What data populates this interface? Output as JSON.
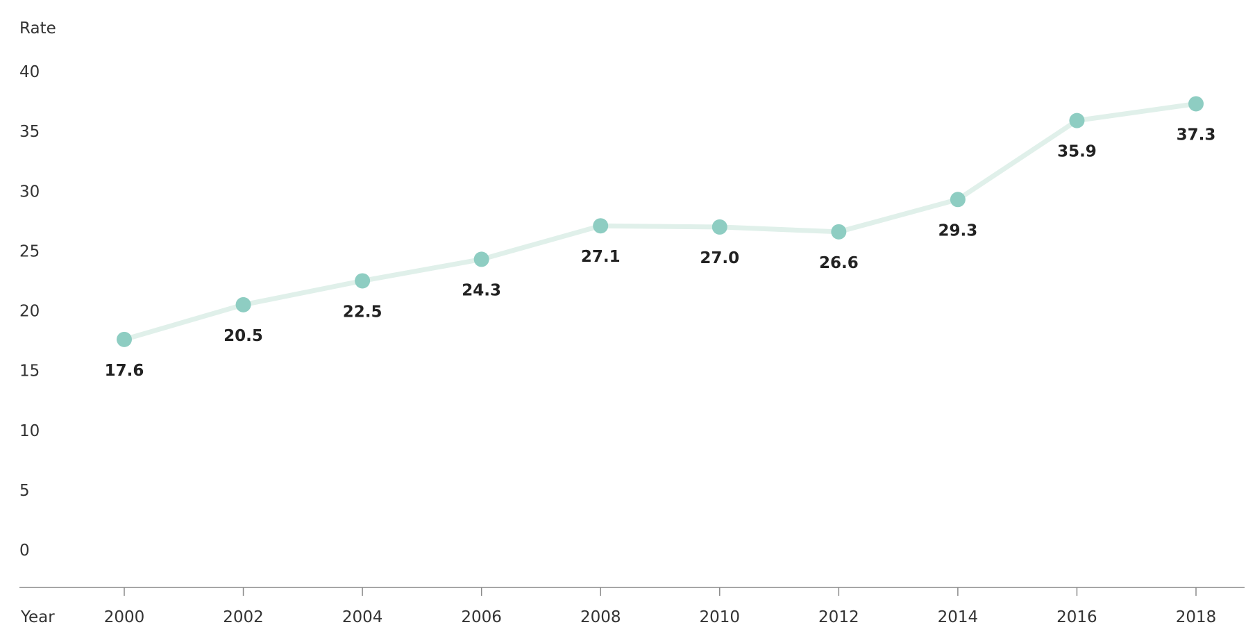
{
  "chart_data": {
    "type": "line",
    "ylabel": "Rate",
    "xlabel": "Year",
    "x": [
      2000,
      2002,
      2004,
      2006,
      2008,
      2010,
      2012,
      2014,
      2016,
      2018
    ],
    "series": [
      {
        "values": [
          17.6,
          20.5,
          22.5,
          24.3,
          27.1,
          27.0,
          26.6,
          29.3,
          35.9,
          37.3
        ],
        "labels": [
          "17.6",
          "20.5",
          "22.5",
          "24.3",
          "27.1",
          "27.0",
          "26.6",
          "29.3",
          "35.9",
          "37.3"
        ]
      }
    ],
    "xticks": [
      "2000",
      "2002",
      "2004",
      "2006",
      "2008",
      "2010",
      "2012",
      "2014",
      "2016",
      "2018"
    ],
    "yticks": [
      "0",
      "5",
      "10",
      "15",
      "20",
      "25",
      "30",
      "35",
      "40"
    ],
    "ylim": [
      0,
      40
    ],
    "grid": false,
    "colors": {
      "line": "#e0f0ea",
      "marker": "#8ecdc2",
      "axis": "#8a8a8a"
    }
  }
}
